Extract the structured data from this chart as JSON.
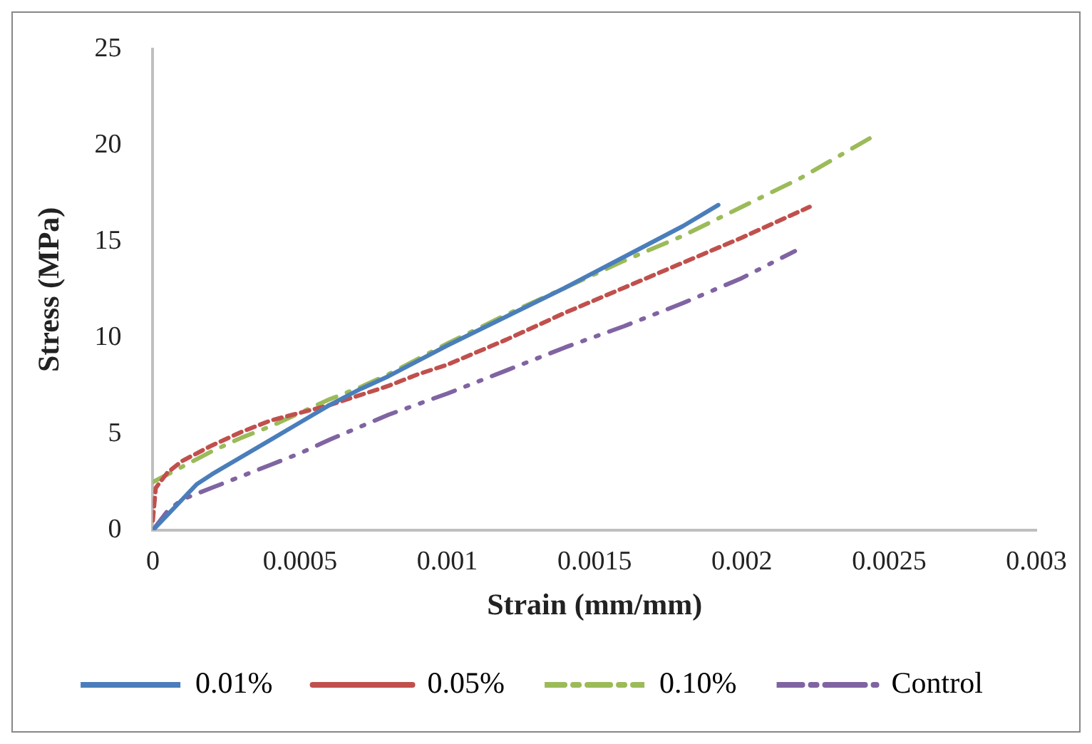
{
  "chart_data": {
    "type": "line",
    "xlabel": "Strain (mm/mm)",
    "ylabel": "Stress (MPa)",
    "xlim": [
      0,
      0.003
    ],
    "xticks": [
      0,
      0.0005,
      0.001,
      0.0015,
      0.002,
      0.0025,
      0.003
    ],
    "ylim": [
      0,
      25
    ],
    "yticks": [
      0,
      5,
      10,
      15,
      20,
      25
    ],
    "grid": false,
    "legend": "bottom",
    "marker": "none",
    "series": [
      {
        "name": "0.01%",
        "color": "#4a7ebb",
        "line_style": "solid",
        "x": [
          0,
          5e-05,
          0.0001,
          0.00015,
          0.0002,
          0.0003,
          0.0004,
          0.0005,
          0.0006,
          0.0007,
          0.0008,
          0.0009,
          0.001,
          0.0012,
          0.0014,
          0.0016,
          0.0018,
          0.00192
        ],
        "values": [
          0,
          0.8,
          1.6,
          2.4,
          2.9,
          3.8,
          4.7,
          5.6,
          6.5,
          7.3,
          8.0,
          8.8,
          9.6,
          11.1,
          12.6,
          14.2,
          15.8,
          16.9
        ]
      },
      {
        "name": "0.05%",
        "color": "#c0504d",
        "line_style": "dashed",
        "x": [
          0,
          1e-05,
          5e-05,
          0.0001,
          0.0002,
          0.0003,
          0.0004,
          0.0005,
          0.0006,
          0.0007,
          0.0008,
          0.0009,
          0.001,
          0.0012,
          0.0014,
          0.0016,
          0.0018,
          0.002,
          0.00223
        ],
        "values": [
          0.5,
          2.2,
          3.0,
          3.6,
          4.4,
          5.1,
          5.7,
          6.1,
          6.5,
          7.0,
          7.5,
          8.1,
          8.6,
          9.9,
          11.3,
          12.6,
          13.9,
          15.2,
          16.8
        ]
      },
      {
        "name": "0.10%",
        "color": "#9bbb59",
        "line_style": "dashed",
        "x": [
          0,
          0.0001,
          0.0002,
          0.0003,
          0.0004,
          0.0005,
          0.0006,
          0.0007,
          0.0008,
          0.0009,
          0.001,
          0.0012,
          0.0014,
          0.0016,
          0.0018,
          0.002,
          0.0022,
          0.00245
        ],
        "values": [
          2.5,
          3.3,
          4.1,
          4.8,
          5.4,
          6.1,
          6.8,
          7.4,
          8.1,
          8.9,
          9.7,
          11.2,
          12.6,
          14.0,
          15.3,
          16.8,
          18.3,
          20.5
        ]
      },
      {
        "name": "Control",
        "color": "#8064a2",
        "line_style": "dashed",
        "x": [
          0,
          5e-05,
          0.0001,
          0.0002,
          0.0003,
          0.0004,
          0.0005,
          0.0006,
          0.0008,
          0.001,
          0.0012,
          0.0014,
          0.0016,
          0.0018,
          0.002,
          0.00218
        ],
        "values": [
          0,
          1.0,
          1.6,
          2.2,
          2.8,
          3.4,
          4.0,
          4.7,
          6.0,
          7.1,
          8.3,
          9.5,
          10.6,
          11.8,
          13.1,
          14.5
        ]
      }
    ]
  }
}
